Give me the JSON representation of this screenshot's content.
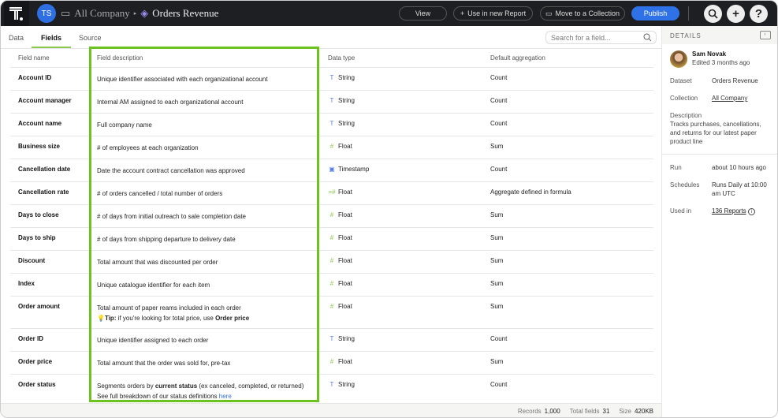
{
  "header": {
    "avatar_initials": "TS",
    "collection": "All Company",
    "dataset": "Orders Revenue",
    "view": "View",
    "use_report": "Use in new Report",
    "move": "Move to a Collection",
    "publish": "Publish"
  },
  "tabs": [
    "Data",
    "Fields",
    "Source"
  ],
  "active_tab": "Fields",
  "search": {
    "placeholder": "Search for a field..."
  },
  "columns": [
    "Field name",
    "Field description",
    "Data type",
    "Default aggregation"
  ],
  "rows": [
    {
      "name": "Account ID",
      "desc": "Unique identifier associated with each organizational account",
      "type": "String",
      "icon": "string",
      "agg": "Count"
    },
    {
      "name": "Account manager",
      "desc": "Internal AM assigned to each organizational account",
      "type": "String",
      "icon": "string",
      "agg": "Count"
    },
    {
      "name": "Account name",
      "desc": "Full company name",
      "type": "String",
      "icon": "string",
      "agg": "Count"
    },
    {
      "name": "Business size",
      "desc": "# of employees at each organization",
      "type": "Float",
      "icon": "float",
      "agg": "Sum"
    },
    {
      "name": "Cancellation date",
      "desc": "Date the account contract cancellation was approved",
      "type": "Timestamp",
      "icon": "timestamp",
      "agg": "Count"
    },
    {
      "name": "Cancellation rate",
      "desc": "# of orders cancelled / total number of orders",
      "type": "Float",
      "icon": "formula",
      "agg": "Aggregate defined in formula"
    },
    {
      "name": "Days to close",
      "desc": "# of days from initial outreach to sale completion date",
      "type": "Float",
      "icon": "float",
      "agg": "Sum"
    },
    {
      "name": "Days to ship",
      "desc": "# of days from shipping departure to delivery date",
      "type": "Float",
      "icon": "float",
      "agg": "Sum"
    },
    {
      "name": "Discount",
      "desc": "Total amount that was discounted per order",
      "type": "Float",
      "icon": "float",
      "agg": "Sum"
    },
    {
      "name": "Index",
      "desc": "Unique catalogue identifier for each item",
      "type": "Float",
      "icon": "float",
      "agg": "Sum"
    },
    {
      "name": "Order amount",
      "desc": "Total amount of paper reams included in each order",
      "tip_label": "Tip:",
      "tip": " if you're looking for total price, use ",
      "tip_bold": "Order price",
      "type": "Float",
      "icon": "float",
      "agg": "Sum"
    },
    {
      "name": "Order ID",
      "desc": "Unique identifier assigned to each order",
      "type": "String",
      "icon": "string",
      "agg": "Count"
    },
    {
      "name": "Order price",
      "desc": "Total amount that the order was sold for, pre-tax",
      "type": "Float",
      "icon": "float",
      "agg": "Sum"
    },
    {
      "name": "Order status",
      "desc_pre": "Segments orders by ",
      "desc_bold": "current status",
      "desc_post": " (ex canceled, completed, or returned)",
      "desc2": "See full breakdown of our status definitions ",
      "link": "here",
      "type": "String",
      "icon": "string",
      "agg": "Count"
    }
  ],
  "footer": {
    "records_label": "Records",
    "records": "1,000",
    "fields_label": "Total fields",
    "fields": "31",
    "size_label": "Size",
    "size": "420KB"
  },
  "details": {
    "title": "DETAILS",
    "user": "Sam Novak",
    "edited": "Edited 3 months ago",
    "dataset_label": "Dataset",
    "dataset": "Orders Revenue",
    "collection_label": "Collection",
    "collection": "All Company",
    "description_label": "Description",
    "description": "Tracks purchases, cancellations, and returns for our latest paper product line",
    "run_label": "Run",
    "run": "about 10 hours ago",
    "schedules_label": "Schedules",
    "schedules": "Runs Daily at 10:00 am UTC",
    "used_label": "Used in",
    "used": "136 Reports"
  },
  "colors": {
    "accent": "#2f72e8",
    "highlight": "#6cc21e",
    "topbar": "#1e1f22"
  }
}
